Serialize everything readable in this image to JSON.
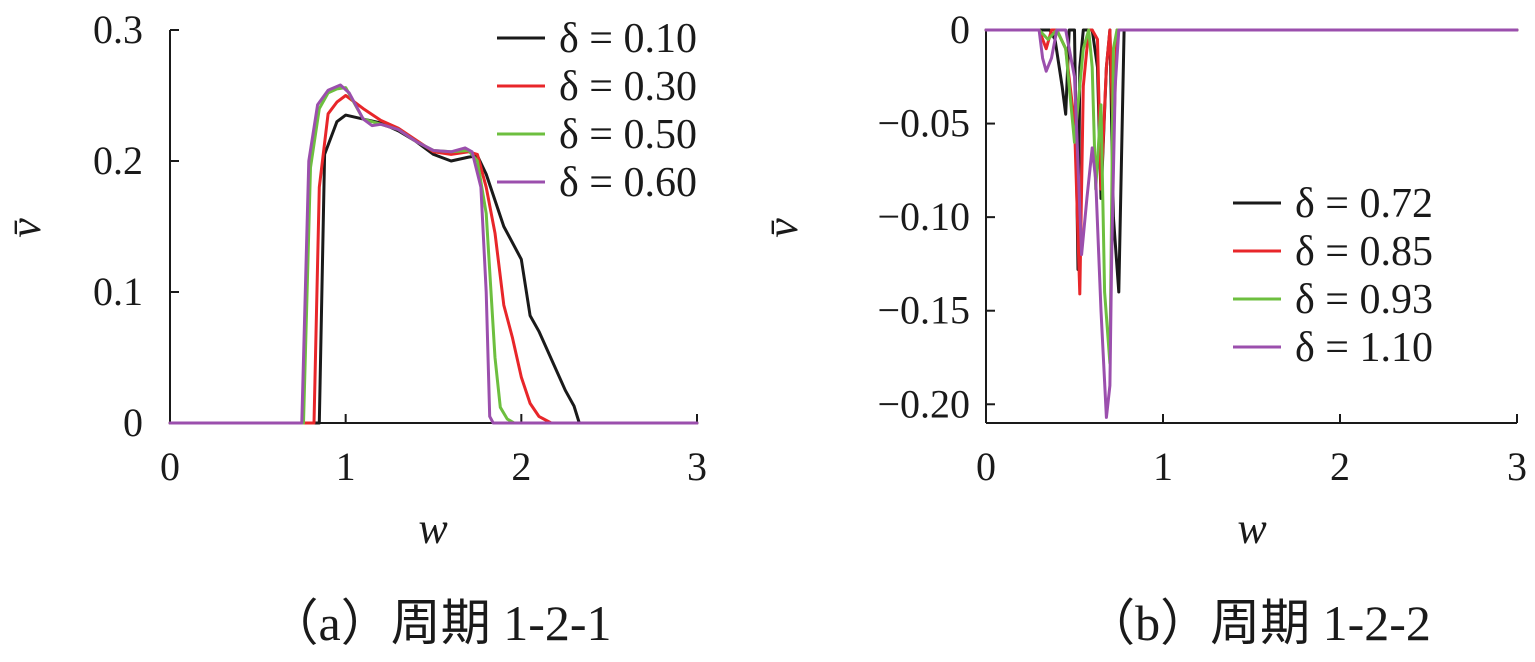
{
  "chart_data": [
    {
      "type": "line",
      "caption": "（a）周期 1-2-1",
      "xlabel": "w",
      "ylabel": "v̄",
      "xlim": [
        0,
        3
      ],
      "ylim": [
        0,
        0.3
      ],
      "xticks": [
        "0",
        "1",
        "2",
        "3"
      ],
      "yticks": [
        "0",
        "0.1",
        "0.2",
        "0.3"
      ],
      "grid": false,
      "legend_position": "top-right",
      "series": [
        {
          "name": "δ = 0.10",
          "color": "#1a1a1a",
          "x": [
            0,
            0.8,
            0.85,
            0.88,
            0.95,
            1.0,
            1.1,
            1.2,
            1.3,
            1.4,
            1.5,
            1.6,
            1.7,
            1.75,
            1.8,
            1.9,
            2.0,
            2.05,
            2.1,
            2.2,
            2.25,
            2.3,
            2.33,
            3
          ],
          "y": [
            0,
            0,
            0,
            0.205,
            0.23,
            0.235,
            0.232,
            0.229,
            0.223,
            0.215,
            0.205,
            0.2,
            0.203,
            0.204,
            0.19,
            0.15,
            0.125,
            0.082,
            0.07,
            0.04,
            0.025,
            0.013,
            0,
            0
          ]
        },
        {
          "name": "δ = 0.30",
          "color": "#e8262a",
          "x": [
            0,
            0.78,
            0.82,
            0.85,
            0.9,
            0.95,
            1.0,
            1.1,
            1.2,
            1.3,
            1.4,
            1.5,
            1.6,
            1.7,
            1.75,
            1.8,
            1.85,
            1.9,
            1.95,
            2.0,
            2.05,
            2.1,
            2.17,
            3
          ],
          "y": [
            0,
            0,
            0,
            0.18,
            0.236,
            0.245,
            0.25,
            0.24,
            0.231,
            0.225,
            0.216,
            0.207,
            0.205,
            0.207,
            0.205,
            0.18,
            0.145,
            0.09,
            0.065,
            0.035,
            0.015,
            0.005,
            0,
            0
          ]
        },
        {
          "name": "δ = 0.50",
          "color": "#6dbf3f",
          "x": [
            0,
            0.76,
            0.8,
            0.85,
            0.9,
            0.95,
            1.0,
            1.1,
            1.2,
            1.3,
            1.4,
            1.5,
            1.6,
            1.7,
            1.75,
            1.8,
            1.85,
            1.88,
            1.92,
            1.96,
            3
          ],
          "y": [
            0,
            0,
            0.195,
            0.24,
            0.252,
            0.255,
            0.256,
            0.232,
            0.228,
            0.224,
            0.215,
            0.208,
            0.207,
            0.208,
            0.2,
            0.16,
            0.05,
            0.012,
            0.003,
            0,
            0
          ]
        },
        {
          "name": "δ = 0.60",
          "color": "#9b4fad",
          "x": [
            0,
            0.75,
            0.79,
            0.84,
            0.9,
            0.97,
            1.02,
            1.1,
            1.15,
            1.2,
            1.3,
            1.4,
            1.5,
            1.6,
            1.68,
            1.72,
            1.77,
            1.8,
            1.82,
            1.84,
            3
          ],
          "y": [
            0,
            0,
            0.2,
            0.243,
            0.254,
            0.258,
            0.252,
            0.232,
            0.227,
            0.228,
            0.224,
            0.215,
            0.208,
            0.207,
            0.21,
            0.207,
            0.18,
            0.1,
            0.005,
            0,
            0
          ]
        }
      ]
    },
    {
      "type": "line",
      "caption": "（b）周期 1-2-2",
      "xlabel": "w",
      "ylabel": "v̄",
      "xlim": [
        0,
        3
      ],
      "ylim": [
        -0.21,
        0
      ],
      "xticks": [
        "0",
        "1",
        "2",
        "3"
      ],
      "yticks": [
        "0",
        "−0.05",
        "−0.10",
        "−0.15",
        "−0.20"
      ],
      "grid": false,
      "legend_position": "right",
      "series": [
        {
          "name": "δ = 0.72",
          "color": "#1a1a1a",
          "x": [
            0,
            0.36,
            0.39,
            0.43,
            0.45,
            0.47,
            0.5,
            0.52,
            0.53,
            0.55,
            0.6,
            0.63,
            0.65,
            0.68,
            0.7,
            0.72,
            0.75,
            0.78,
            3
          ],
          "y": [
            0,
            0,
            -0.005,
            -0.03,
            -0.045,
            0,
            0,
            -0.128,
            -0.02,
            0,
            0,
            -0.02,
            -0.09,
            -0.02,
            0,
            -0.1,
            -0.14,
            0,
            0
          ]
        },
        {
          "name": "δ = 0.85",
          "color": "#e8262a",
          "x": [
            0,
            0.3,
            0.34,
            0.37,
            0.4,
            0.45,
            0.5,
            0.53,
            0.55,
            0.58,
            0.6,
            0.63,
            0.65,
            0.68,
            0.7,
            0.72,
            0.74,
            3
          ],
          "y": [
            0,
            0,
            -0.01,
            0,
            0,
            -0.01,
            -0.05,
            -0.141,
            -0.03,
            0,
            0,
            -0.005,
            -0.085,
            -0.02,
            0,
            -0.06,
            0,
            0
          ]
        },
        {
          "name": "δ = 0.93",
          "color": "#6dbf3f",
          "x": [
            0,
            0.28,
            0.3,
            0.35,
            0.4,
            0.45,
            0.5,
            0.52,
            0.55,
            0.58,
            0.6,
            0.62,
            0.65,
            0.67,
            0.7,
            0.72,
            0.74,
            3
          ],
          "y": [
            0,
            0,
            0,
            -0.005,
            0,
            -0.01,
            -0.06,
            -0.04,
            -0.01,
            0,
            -0.02,
            -0.085,
            -0.04,
            -0.14,
            -0.178,
            -0.01,
            0,
            0
          ]
        },
        {
          "name": "δ = 1.10",
          "color": "#9b4fad",
          "x": [
            0,
            0.3,
            0.32,
            0.34,
            0.37,
            0.4,
            0.42,
            0.45,
            0.5,
            0.54,
            0.57,
            0.6,
            0.62,
            0.65,
            0.68,
            0.7,
            0.71,
            0.73,
            0.75,
            3
          ],
          "y": [
            0,
            0,
            -0.015,
            -0.022,
            -0.015,
            0,
            0,
            0,
            -0.025,
            -0.12,
            -0.09,
            -0.063,
            -0.08,
            -0.15,
            -0.207,
            -0.19,
            -0.12,
            -0.03,
            0,
            0
          ]
        }
      ]
    }
  ]
}
